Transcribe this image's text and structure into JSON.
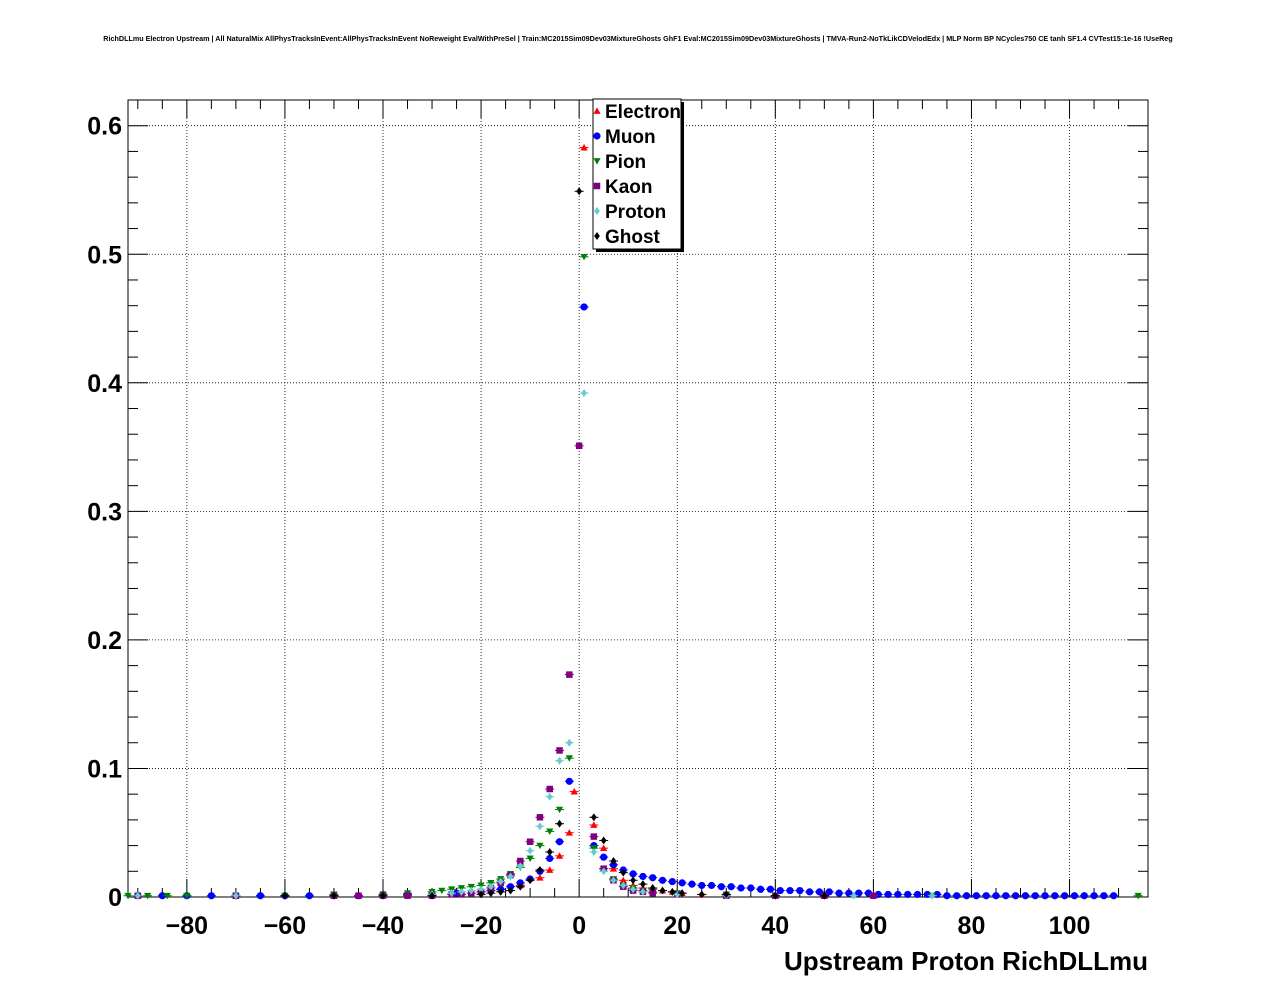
{
  "chart_data": {
    "type": "scatter",
    "title": "RichDLLmu Electron Upstream | All NaturalMix AllPhysTracksInEvent:AllPhysTracksInEvent NoReweight EvalWithPreSel | Train:MC2015Sim09Dev03MixtureGhosts GhF1 Eval:MC2015Sim09Dev03MixtureGhosts | TMVA-Run2-NoTkLikCDVelodEdx | MLP Norm BP NCycles750 CE tanh SF1.4 CVTest15:1e-16 !UseReg",
    "xlabel": "Upstream Proton RichDLLmu",
    "ylabel": "",
    "xlim": [
      -92,
      116
    ],
    "ylim": [
      0,
      0.62
    ],
    "grid": true,
    "legend_position": "top-center",
    "x_ticks": [
      {
        "value": -80,
        "label": "−80"
      },
      {
        "value": -60,
        "label": "−60"
      },
      {
        "value": -40,
        "label": "−40"
      },
      {
        "value": -20,
        "label": "−20"
      },
      {
        "value": 0,
        "label": "0"
      },
      {
        "value": 20,
        "label": "20"
      },
      {
        "value": 40,
        "label": "40"
      },
      {
        "value": 60,
        "label": "60"
      },
      {
        "value": 80,
        "label": "80"
      },
      {
        "value": 100,
        "label": "100"
      }
    ],
    "y_ticks": [
      {
        "value": 0,
        "label": "0"
      },
      {
        "value": 0.1,
        "label": "0.1"
      },
      {
        "value": 0.2,
        "label": "0.2"
      },
      {
        "value": 0.3,
        "label": "0.3"
      },
      {
        "value": 0.4,
        "label": "0.4"
      },
      {
        "value": 0.5,
        "label": "0.5"
      },
      {
        "value": 0.6,
        "label": "0.6"
      }
    ],
    "series": [
      {
        "name": "Electron",
        "color": "#ff0000",
        "marker": "triangle-up",
        "points": [
          [
            -90,
            0.001
          ],
          [
            -70,
            0.001
          ],
          [
            -50,
            0.001
          ],
          [
            -30,
            0.002
          ],
          [
            -20,
            0.004
          ],
          [
            -16,
            0.006
          ],
          [
            -12,
            0.009
          ],
          [
            -8,
            0.015
          ],
          [
            -6,
            0.021
          ],
          [
            -4,
            0.032
          ],
          [
            -2,
            0.05
          ],
          [
            -1,
            0.082
          ],
          [
            1,
            0.583
          ],
          [
            3,
            0.056
          ],
          [
            5,
            0.038
          ],
          [
            7,
            0.022
          ],
          [
            9,
            0.013
          ],
          [
            11,
            0.009
          ],
          [
            13,
            0.007
          ],
          [
            15,
            0.006
          ],
          [
            17,
            0.005
          ],
          [
            19,
            0.004
          ],
          [
            21,
            0.003
          ],
          [
            25,
            0.002
          ],
          [
            30,
            0.002
          ],
          [
            40,
            0.001
          ],
          [
            50,
            0.001
          ]
        ]
      },
      {
        "name": "Muon",
        "color": "#0000ff",
        "marker": "circle",
        "points": [
          [
            -90,
            0.001
          ],
          [
            -85,
            0.001
          ],
          [
            -80,
            0.001
          ],
          [
            -75,
            0.001
          ],
          [
            -70,
            0.001
          ],
          [
            -65,
            0.001
          ],
          [
            -60,
            0.001
          ],
          [
            -55,
            0.001
          ],
          [
            -50,
            0.001
          ],
          [
            -45,
            0.001
          ],
          [
            -40,
            0.002
          ],
          [
            -35,
            0.002
          ],
          [
            -30,
            0.002
          ],
          [
            -25,
            0.003
          ],
          [
            -20,
            0.004
          ],
          [
            -18,
            0.005
          ],
          [
            -16,
            0.006
          ],
          [
            -14,
            0.008
          ],
          [
            -12,
            0.011
          ],
          [
            -10,
            0.014
          ],
          [
            -8,
            0.02
          ],
          [
            -6,
            0.03
          ],
          [
            -4,
            0.043
          ],
          [
            -2,
            0.09
          ],
          [
            1,
            0.459
          ],
          [
            3,
            0.04
          ],
          [
            5,
            0.031
          ],
          [
            7,
            0.025
          ],
          [
            9,
            0.021
          ],
          [
            11,
            0.018
          ],
          [
            13,
            0.016
          ],
          [
            15,
            0.015
          ],
          [
            17,
            0.013
          ],
          [
            19,
            0.012
          ],
          [
            21,
            0.011
          ],
          [
            23,
            0.01
          ],
          [
            25,
            0.009
          ],
          [
            27,
            0.009
          ],
          [
            29,
            0.008
          ],
          [
            31,
            0.008
          ],
          [
            33,
            0.007
          ],
          [
            35,
            0.007
          ],
          [
            37,
            0.006
          ],
          [
            39,
            0.006
          ],
          [
            41,
            0.005
          ],
          [
            43,
            0.005
          ],
          [
            45,
            0.005
          ],
          [
            47,
            0.004
          ],
          [
            49,
            0.004
          ],
          [
            51,
            0.004
          ],
          [
            53,
            0.003
          ],
          [
            55,
            0.003
          ],
          [
            57,
            0.003
          ],
          [
            59,
            0.003
          ],
          [
            61,
            0.002
          ],
          [
            63,
            0.002
          ],
          [
            65,
            0.002
          ],
          [
            67,
            0.002
          ],
          [
            69,
            0.002
          ],
          [
            71,
            0.002
          ],
          [
            73,
            0.002
          ],
          [
            75,
            0.001
          ],
          [
            77,
            0.001
          ],
          [
            79,
            0.001
          ],
          [
            81,
            0.001
          ],
          [
            83,
            0.001
          ],
          [
            85,
            0.001
          ],
          [
            87,
            0.001
          ],
          [
            89,
            0.001
          ],
          [
            91,
            0.001
          ],
          [
            93,
            0.001
          ],
          [
            95,
            0.001
          ],
          [
            97,
            0.001
          ],
          [
            99,
            0.001
          ],
          [
            101,
            0.001
          ],
          [
            103,
            0.001
          ],
          [
            105,
            0.001
          ],
          [
            107,
            0.001
          ],
          [
            109,
            0.001
          ]
        ]
      },
      {
        "name": "Pion",
        "color": "#008000",
        "marker": "triangle-down",
        "points": [
          [
            -92,
            0.001
          ],
          [
            -88,
            0.001
          ],
          [
            -84,
            0.001
          ],
          [
            -80,
            0.001
          ],
          [
            -70,
            0.001
          ],
          [
            -60,
            0.001
          ],
          [
            -50,
            0.002
          ],
          [
            -40,
            0.002
          ],
          [
            -35,
            0.003
          ],
          [
            -30,
            0.004
          ],
          [
            -28,
            0.005
          ],
          [
            -26,
            0.006
          ],
          [
            -24,
            0.007
          ],
          [
            -22,
            0.008
          ],
          [
            -20,
            0.009
          ],
          [
            -18,
            0.011
          ],
          [
            -16,
            0.014
          ],
          [
            -14,
            0.018
          ],
          [
            -12,
            0.023
          ],
          [
            -10,
            0.03
          ],
          [
            -8,
            0.04
          ],
          [
            -6,
            0.051
          ],
          [
            -4,
            0.068
          ],
          [
            -2,
            0.108
          ],
          [
            1,
            0.498
          ],
          [
            3,
            0.038
          ],
          [
            5,
            0.022
          ],
          [
            7,
            0.014
          ],
          [
            9,
            0.009
          ],
          [
            11,
            0.007
          ],
          [
            13,
            0.005
          ],
          [
            15,
            0.004
          ],
          [
            20,
            0.003
          ],
          [
            30,
            0.002
          ],
          [
            40,
            0.001
          ],
          [
            50,
            0.001
          ],
          [
            60,
            0.001
          ],
          [
            72,
            0.001
          ],
          [
            114,
            0.001
          ]
        ]
      },
      {
        "name": "Kaon",
        "color": "#800080",
        "marker": "square",
        "points": [
          [
            -90,
            0.001
          ],
          [
            -70,
            0.001
          ],
          [
            -50,
            0.001
          ],
          [
            -45,
            0.001
          ],
          [
            -40,
            0.001
          ],
          [
            -35,
            0.001
          ],
          [
            -30,
            0.001
          ],
          [
            -26,
            0.002
          ],
          [
            -24,
            0.002
          ],
          [
            -22,
            0.003
          ],
          [
            -20,
            0.004
          ],
          [
            -18,
            0.007
          ],
          [
            -16,
            0.011
          ],
          [
            -14,
            0.017
          ],
          [
            -12,
            0.028
          ],
          [
            -10,
            0.043
          ],
          [
            -8,
            0.062
          ],
          [
            -6,
            0.084
          ],
          [
            -4,
            0.114
          ],
          [
            -2,
            0.173
          ],
          [
            0,
            0.351
          ],
          [
            3,
            0.047
          ],
          [
            5,
            0.022
          ],
          [
            7,
            0.013
          ],
          [
            9,
            0.008
          ],
          [
            11,
            0.005
          ],
          [
            13,
            0.004
          ],
          [
            15,
            0.003
          ],
          [
            20,
            0.002
          ],
          [
            30,
            0.001
          ],
          [
            40,
            0.001
          ],
          [
            50,
            0.001
          ],
          [
            60,
            0.001
          ]
        ]
      },
      {
        "name": "Proton",
        "color": "#66cccc",
        "marker": "diamond",
        "points": [
          [
            -90,
            0.001
          ],
          [
            -70,
            0.001
          ],
          [
            -50,
            0.001
          ],
          [
            -40,
            0.001
          ],
          [
            -30,
            0.002
          ],
          [
            -26,
            0.003
          ],
          [
            -24,
            0.004
          ],
          [
            -22,
            0.005
          ],
          [
            -20,
            0.006
          ],
          [
            -18,
            0.008
          ],
          [
            -16,
            0.012
          ],
          [
            -14,
            0.016
          ],
          [
            -12,
            0.024
          ],
          [
            -10,
            0.036
          ],
          [
            -8,
            0.055
          ],
          [
            -6,
            0.078
          ],
          [
            -4,
            0.106
          ],
          [
            -2,
            0.12
          ],
          [
            1,
            0.392
          ],
          [
            3,
            0.035
          ],
          [
            5,
            0.02
          ],
          [
            7,
            0.013
          ],
          [
            9,
            0.009
          ],
          [
            11,
            0.006
          ],
          [
            13,
            0.004
          ],
          [
            20,
            0.002
          ],
          [
            30,
            0.001
          ],
          [
            40,
            0.001
          ],
          [
            56,
            0.001
          ],
          [
            72,
            0.001
          ]
        ]
      },
      {
        "name": "Ghost",
        "color": "#000000",
        "marker": "diamond",
        "points": [
          [
            -60,
            0.001
          ],
          [
            -50,
            0.001
          ],
          [
            -40,
            0.001
          ],
          [
            -30,
            0.001
          ],
          [
            -20,
            0.002
          ],
          [
            -18,
            0.003
          ],
          [
            -16,
            0.004
          ],
          [
            -14,
            0.005
          ],
          [
            -12,
            0.008
          ],
          [
            -10,
            0.013
          ],
          [
            -8,
            0.021
          ],
          [
            -6,
            0.035
          ],
          [
            -4,
            0.057
          ],
          [
            0,
            0.549
          ],
          [
            3,
            0.062
          ],
          [
            5,
            0.044
          ],
          [
            7,
            0.028
          ],
          [
            9,
            0.019
          ],
          [
            11,
            0.013
          ],
          [
            13,
            0.01
          ],
          [
            15,
            0.007
          ],
          [
            17,
            0.005
          ],
          [
            19,
            0.004
          ],
          [
            21,
            0.003
          ],
          [
            25,
            0.002
          ],
          [
            30,
            0.002
          ],
          [
            40,
            0.001
          ],
          [
            50,
            0.001
          ]
        ]
      }
    ]
  }
}
